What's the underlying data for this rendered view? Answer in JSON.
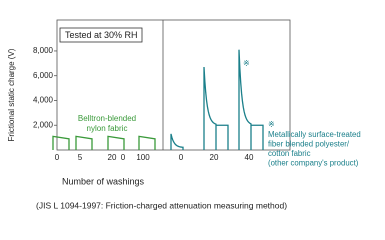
{
  "chart_data": {
    "type": "decay",
    "badge": "Tested at 30% RH",
    "y_label": "Frictional static charge (V)",
    "x_label": "Number of washings",
    "footnote": "(JIS L 1094-1997: Friction-charged attenuation measuring method)",
    "categories": [
      "0",
      "5",
      "20",
      "100",
      "0",
      "20",
      "40"
    ],
    "zero_mark": "0",
    "ylim": [
      0,
      10500
    ],
    "yticks": [
      {
        "value": 2000,
        "label": "2,000"
      },
      {
        "value": 4000,
        "label": "4,000"
      },
      {
        "value": 6000,
        "label": "6,000"
      },
      {
        "value": 8000,
        "label": "8,000"
      }
    ],
    "series": [
      {
        "name": [
          "Belltron-blended",
          "nylon fabric"
        ],
        "color": "#3a9a3a",
        "values": [
          1100,
          1100,
          1100,
          1100,
          null,
          null,
          null
        ],
        "end_values": [
          900,
          900,
          900,
          900,
          null,
          null,
          null
        ]
      },
      {
        "name": [
          "Metallically surface-treated",
          "fiber blended polyester/",
          "cotton fabric",
          "(other company's product)"
        ],
        "marker": "※",
        "color": "#1a7f8a",
        "values": [
          null,
          null,
          null,
          null,
          1300,
          6700,
          8100
        ],
        "end_values": [
          null,
          null,
          null,
          null,
          200,
          2000,
          2000
        ]
      }
    ]
  }
}
